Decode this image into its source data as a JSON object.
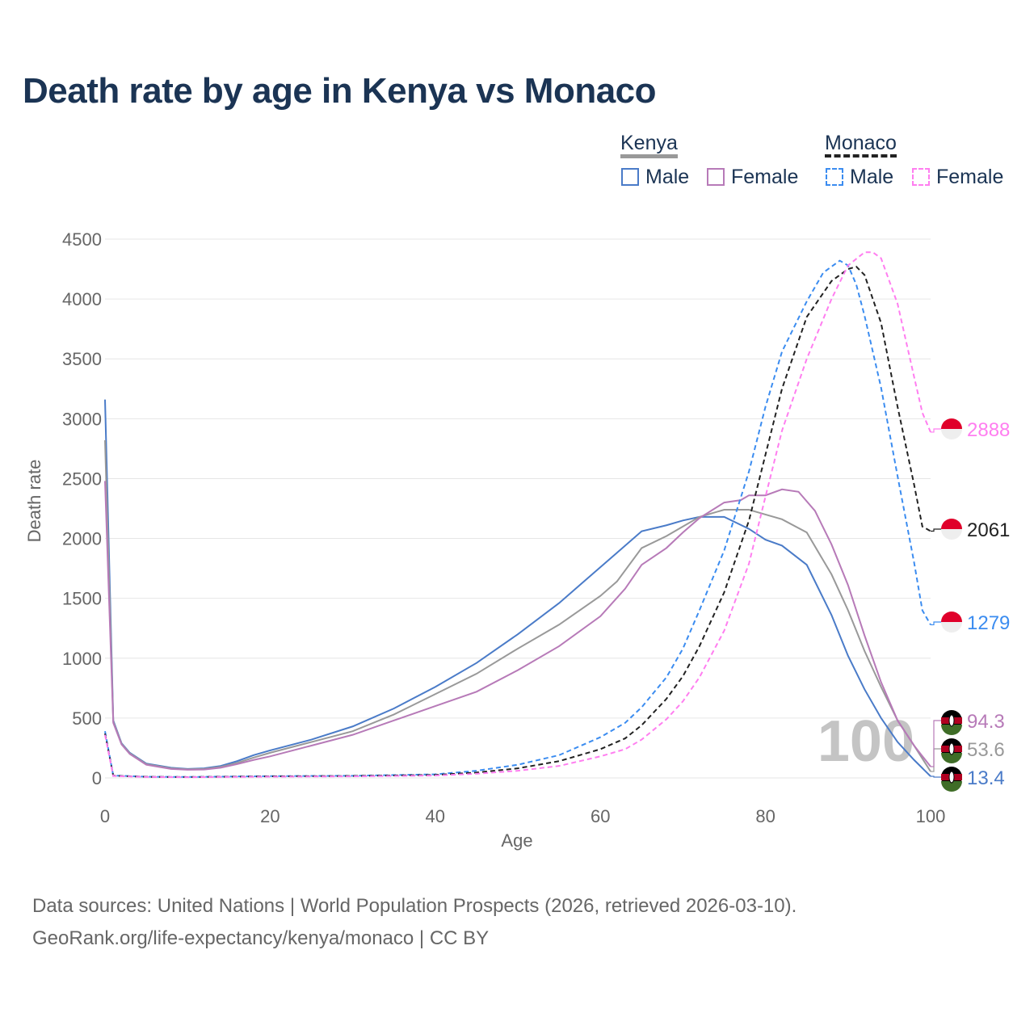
{
  "title": "Death rate by age in Kenya vs Monaco",
  "legend": {
    "group1": "Kenya",
    "group2": "Monaco",
    "male": "Male",
    "female": "Female"
  },
  "source_line1": "Data sources: United Nations | World Population Prospects (2026, retrieved 2026-03-10).",
  "source_line2": "GeoRank.org/life-expectancy/kenya/monaco | CC BY",
  "chart_data": {
    "type": "line",
    "title": "Death rate by age in Kenya vs Monaco",
    "xlabel": "Age",
    "ylabel": "Death rate",
    "xlim": [
      0,
      100
    ],
    "ylim": [
      0,
      4500
    ],
    "xticks": [
      0,
      20,
      40,
      60,
      80,
      100
    ],
    "yticks": [
      0,
      500,
      1000,
      1500,
      2000,
      2500,
      3000,
      3500,
      4000,
      4500
    ],
    "watermark": "100",
    "grid": true,
    "series": [
      {
        "name": "Kenya Male",
        "color": "#4a7bc8",
        "dash": false,
        "end_label": "13.4",
        "points": [
          [
            0,
            3160
          ],
          [
            1,
            480
          ],
          [
            2,
            290
          ],
          [
            3,
            210
          ],
          [
            5,
            120
          ],
          [
            8,
            85
          ],
          [
            10,
            75
          ],
          [
            12,
            80
          ],
          [
            14,
            100
          ],
          [
            16,
            140
          ],
          [
            18,
            190
          ],
          [
            20,
            230
          ],
          [
            25,
            320
          ],
          [
            30,
            430
          ],
          [
            35,
            580
          ],
          [
            40,
            760
          ],
          [
            45,
            960
          ],
          [
            50,
            1200
          ],
          [
            55,
            1460
          ],
          [
            58,
            1640
          ],
          [
            60,
            1760
          ],
          [
            62,
            1880
          ],
          [
            65,
            2060
          ],
          [
            68,
            2110
          ],
          [
            70,
            2150
          ],
          [
            72,
            2180
          ],
          [
            75,
            2180
          ],
          [
            78,
            2080
          ],
          [
            80,
            1990
          ],
          [
            82,
            1940
          ],
          [
            85,
            1780
          ],
          [
            88,
            1360
          ],
          [
            90,
            1020
          ],
          [
            92,
            740
          ],
          [
            94,
            500
          ],
          [
            96,
            300
          ],
          [
            98,
            150
          ],
          [
            100,
            13.4
          ]
        ]
      },
      {
        "name": "Kenya",
        "color": "#999999",
        "dash": false,
        "end_label": "53.6",
        "points": [
          [
            0,
            2820
          ],
          [
            1,
            470
          ],
          [
            2,
            285
          ],
          [
            3,
            205
          ],
          [
            5,
            115
          ],
          [
            8,
            80
          ],
          [
            10,
            72
          ],
          [
            12,
            75
          ],
          [
            14,
            92
          ],
          [
            16,
            125
          ],
          [
            18,
            170
          ],
          [
            20,
            210
          ],
          [
            25,
            300
          ],
          [
            30,
            390
          ],
          [
            35,
            530
          ],
          [
            40,
            700
          ],
          [
            45,
            870
          ],
          [
            50,
            1080
          ],
          [
            55,
            1280
          ],
          [
            60,
            1520
          ],
          [
            62,
            1640
          ],
          [
            65,
            1920
          ],
          [
            68,
            2020
          ],
          [
            70,
            2100
          ],
          [
            72,
            2180
          ],
          [
            75,
            2240
          ],
          [
            78,
            2240
          ],
          [
            80,
            2200
          ],
          [
            82,
            2160
          ],
          [
            85,
            2050
          ],
          [
            88,
            1700
          ],
          [
            90,
            1400
          ],
          [
            92,
            1060
          ],
          [
            94,
            760
          ],
          [
            96,
            480
          ],
          [
            98,
            270
          ],
          [
            100,
            53.6
          ]
        ]
      },
      {
        "name": "Kenya Female",
        "color": "#b77ab8",
        "dash": false,
        "end_label": "94.3",
        "points": [
          [
            0,
            2480
          ],
          [
            1,
            460
          ],
          [
            2,
            280
          ],
          [
            3,
            200
          ],
          [
            5,
            110
          ],
          [
            8,
            75
          ],
          [
            10,
            68
          ],
          [
            12,
            70
          ],
          [
            14,
            85
          ],
          [
            16,
            115
          ],
          [
            18,
            150
          ],
          [
            20,
            180
          ],
          [
            25,
            270
          ],
          [
            30,
            360
          ],
          [
            35,
            480
          ],
          [
            40,
            600
          ],
          [
            45,
            720
          ],
          [
            50,
            900
          ],
          [
            55,
            1100
          ],
          [
            60,
            1350
          ],
          [
            63,
            1580
          ],
          [
            65,
            1780
          ],
          [
            68,
            1920
          ],
          [
            70,
            2050
          ],
          [
            72,
            2170
          ],
          [
            75,
            2300
          ],
          [
            77,
            2320
          ],
          [
            78,
            2360
          ],
          [
            80,
            2360
          ],
          [
            82,
            2410
          ],
          [
            84,
            2390
          ],
          [
            86,
            2230
          ],
          [
            88,
            1950
          ],
          [
            90,
            1610
          ],
          [
            92,
            1190
          ],
          [
            94,
            800
          ],
          [
            96,
            480
          ],
          [
            98,
            270
          ],
          [
            100,
            94.3
          ]
        ]
      },
      {
        "name": "Monaco Male",
        "color": "#3b8cf0",
        "dash": true,
        "end_label": "1279",
        "points": [
          [
            0,
            390
          ],
          [
            1,
            20
          ],
          [
            5,
            10
          ],
          [
            10,
            8
          ],
          [
            20,
            15
          ],
          [
            30,
            18
          ],
          [
            40,
            30
          ],
          [
            45,
            60
          ],
          [
            50,
            110
          ],
          [
            55,
            190
          ],
          [
            60,
            340
          ],
          [
            63,
            460
          ],
          [
            65,
            590
          ],
          [
            68,
            840
          ],
          [
            70,
            1080
          ],
          [
            72,
            1400
          ],
          [
            75,
            1900
          ],
          [
            78,
            2560
          ],
          [
            80,
            3100
          ],
          [
            82,
            3560
          ],
          [
            85,
            3980
          ],
          [
            87,
            4220
          ],
          [
            89,
            4320
          ],
          [
            90,
            4280
          ],
          [
            91,
            4120
          ],
          [
            92,
            3860
          ],
          [
            94,
            3260
          ],
          [
            96,
            2520
          ],
          [
            98,
            1800
          ],
          [
            99,
            1400
          ],
          [
            100,
            1279
          ]
        ]
      },
      {
        "name": "Monaco",
        "color": "#222222",
        "dash": true,
        "end_label": "2061",
        "points": [
          [
            0,
            370
          ],
          [
            1,
            18
          ],
          [
            5,
            9
          ],
          [
            10,
            7
          ],
          [
            20,
            13
          ],
          [
            30,
            16
          ],
          [
            40,
            25
          ],
          [
            45,
            45
          ],
          [
            50,
            80
          ],
          [
            55,
            140
          ],
          [
            60,
            240
          ],
          [
            63,
            330
          ],
          [
            65,
            440
          ],
          [
            68,
            660
          ],
          [
            70,
            850
          ],
          [
            72,
            1100
          ],
          [
            75,
            1550
          ],
          [
            78,
            2150
          ],
          [
            80,
            2700
          ],
          [
            82,
            3250
          ],
          [
            85,
            3850
          ],
          [
            88,
            4150
          ],
          [
            90,
            4250
          ],
          [
            91,
            4270
          ],
          [
            92,
            4200
          ],
          [
            94,
            3800
          ],
          [
            96,
            3100
          ],
          [
            98,
            2450
          ],
          [
            99,
            2100
          ],
          [
            100,
            2061
          ]
        ]
      },
      {
        "name": "Monaco Female",
        "color": "#ff7ef0",
        "dash": true,
        "end_label": "2888",
        "points": [
          [
            0,
            360
          ],
          [
            1,
            16
          ],
          [
            5,
            8
          ],
          [
            10,
            6
          ],
          [
            20,
            10
          ],
          [
            30,
            13
          ],
          [
            40,
            20
          ],
          [
            45,
            35
          ],
          [
            50,
            60
          ],
          [
            55,
            100
          ],
          [
            60,
            180
          ],
          [
            63,
            240
          ],
          [
            65,
            320
          ],
          [
            68,
            490
          ],
          [
            70,
            640
          ],
          [
            72,
            840
          ],
          [
            75,
            1230
          ],
          [
            78,
            1790
          ],
          [
            80,
            2350
          ],
          [
            82,
            2900
          ],
          [
            85,
            3500
          ],
          [
            88,
            4000
          ],
          [
            90,
            4280
          ],
          [
            92,
            4390
          ],
          [
            93,
            4390
          ],
          [
            94,
            4340
          ],
          [
            96,
            3960
          ],
          [
            98,
            3350
          ],
          [
            99,
            3050
          ],
          [
            100,
            2888
          ]
        ]
      }
    ]
  }
}
